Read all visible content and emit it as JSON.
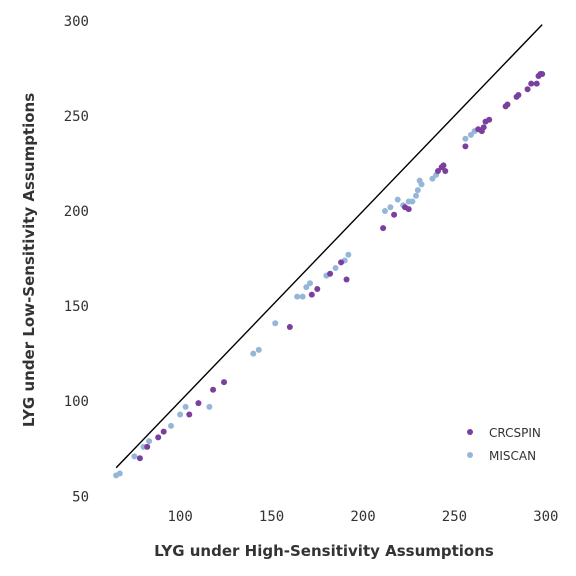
{
  "chart_data": {
    "type": "scatter",
    "xlabel": "LYG under High-Sensitivity Assumptions",
    "ylabel": "LYG under Low-Sensitivity Assumptions",
    "xlim": [
      60,
      305
    ],
    "ylim": [
      47,
      302
    ],
    "xticks": [
      100,
      150,
      200,
      250,
      300
    ],
    "yticks": [
      50,
      100,
      150,
      200,
      250,
      300
    ],
    "grid": false,
    "legend_position": "bottom-right",
    "reference_line": {
      "x": [
        65,
        298
      ],
      "y": [
        65,
        298
      ],
      "color": "#000000"
    },
    "series": [
      {
        "name": "CRCSPIN",
        "color": "#7b3f9e",
        "points": [
          [
            78,
            70
          ],
          [
            82,
            76
          ],
          [
            88,
            81
          ],
          [
            91,
            84
          ],
          [
            105,
            93
          ],
          [
            110,
            99
          ],
          [
            118,
            106
          ],
          [
            124,
            110
          ],
          [
            160,
            139
          ],
          [
            172,
            156
          ],
          [
            175,
            159
          ],
          [
            182,
            167
          ],
          [
            188,
            173
          ],
          [
            191,
            164
          ],
          [
            211,
            191
          ],
          [
            217,
            198
          ],
          [
            223,
            202
          ],
          [
            225,
            201
          ],
          [
            241,
            221
          ],
          [
            243,
            223
          ],
          [
            244,
            224
          ],
          [
            245,
            221
          ],
          [
            256,
            234
          ],
          [
            263,
            243
          ],
          [
            265,
            242
          ],
          [
            266,
            244
          ],
          [
            267,
            247
          ],
          [
            269,
            248
          ],
          [
            278,
            255
          ],
          [
            279,
            256
          ],
          [
            284,
            260
          ],
          [
            285,
            261
          ],
          [
            290,
            264
          ],
          [
            292,
            267
          ],
          [
            295,
            267
          ],
          [
            296,
            271
          ],
          [
            297,
            272
          ],
          [
            298,
            272
          ]
        ]
      },
      {
        "name": "MISCAN",
        "color": "#96b6d9",
        "points": [
          [
            65,
            61
          ],
          [
            67,
            62
          ],
          [
            75,
            71
          ],
          [
            80,
            76
          ],
          [
            83,
            79
          ],
          [
            95,
            87
          ],
          [
            100,
            93
          ],
          [
            103,
            97
          ],
          [
            116,
            97
          ],
          [
            140,
            125
          ],
          [
            143,
            127
          ],
          [
            152,
            141
          ],
          [
            164,
            155
          ],
          [
            167,
            155
          ],
          [
            169,
            160
          ],
          [
            171,
            162
          ],
          [
            180,
            166
          ],
          [
            185,
            170
          ],
          [
            190,
            174
          ],
          [
            192,
            177
          ],
          [
            212,
            200
          ],
          [
            215,
            202
          ],
          [
            219,
            206
          ],
          [
            222,
            203
          ],
          [
            225,
            205
          ],
          [
            227,
            205
          ],
          [
            229,
            208
          ],
          [
            230,
            211
          ],
          [
            231,
            216
          ],
          [
            232,
            214
          ],
          [
            238,
            217
          ],
          [
            240,
            219
          ],
          [
            256,
            238
          ],
          [
            259,
            240
          ],
          [
            261,
            242
          ]
        ]
      }
    ]
  }
}
